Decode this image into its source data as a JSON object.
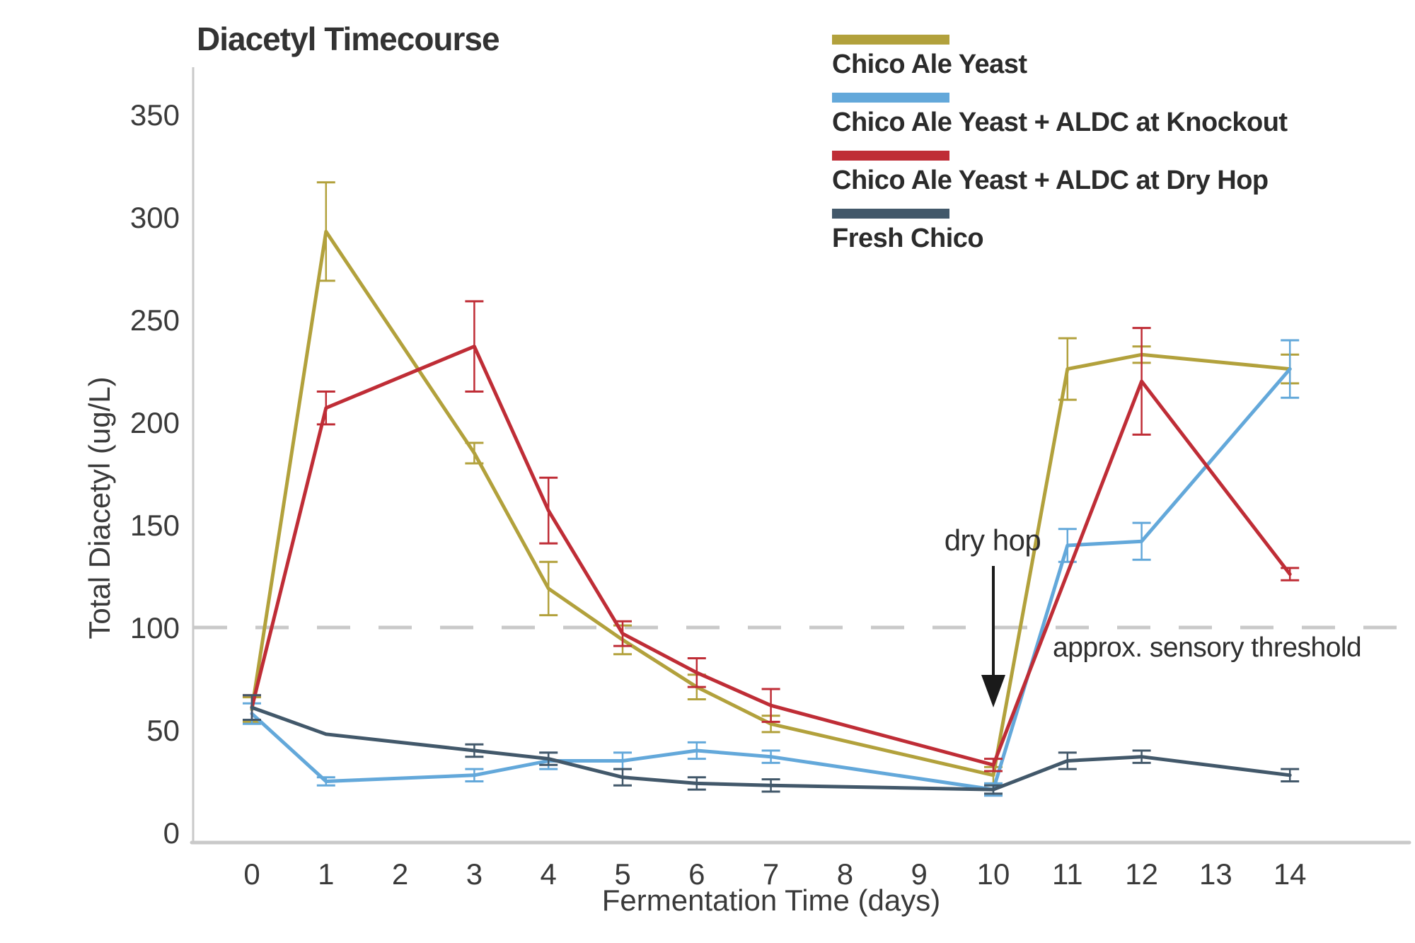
{
  "title": "Diacetyl Timecourse",
  "axes": {
    "x": {
      "label": "Fermentation Time (days)",
      "ticks": [
        0,
        1,
        2,
        3,
        4,
        5,
        6,
        7,
        8,
        9,
        10,
        11,
        12,
        13,
        14
      ]
    },
    "y": {
      "label": "Total Diacetyl (ug/L)",
      "ticks": [
        0,
        50,
        100,
        150,
        200,
        250,
        300,
        350
      ]
    }
  },
  "annotations": {
    "dry_hop": {
      "label": "dry hop",
      "day": 10
    },
    "threshold": {
      "label": "approx. sensory threshold",
      "value": 100
    }
  },
  "colors": {
    "axis": "#c9c9c9",
    "threshold_line": "#c9c9c9",
    "tick_text": "#3a3a3a",
    "annotation_text": "#2f2f2f",
    "arrow": "#1a1a1a",
    "background": "#ffffff"
  },
  "chart_data": {
    "type": "line",
    "title": "Diacetyl Timecourse",
    "xlabel": "Fermentation Time (days)",
    "ylabel": "Total Diacetyl (ug/L)",
    "xlim": [
      -0.8,
      15.6
    ],
    "ylim": [
      0,
      373
    ],
    "grid": false,
    "legend_position": "top-right",
    "threshold_line_y": 100,
    "dry_hop_arrow_day": 10,
    "series": [
      {
        "name": "Chico Ale Yeast",
        "color": "#b2a13c",
        "days": [
          0,
          1,
          3,
          4,
          5,
          6,
          7,
          10,
          11,
          12,
          14
        ],
        "values": [
          60,
          293,
          185,
          119,
          94,
          71,
          53,
          28,
          226,
          233,
          226
        ],
        "errors": [
          6,
          24,
          5,
          13,
          7,
          6,
          4,
          4,
          15,
          4,
          7
        ]
      },
      {
        "name": "Chico Ale Yeast + ALDC at Knockout",
        "color": "#63a8da",
        "days": [
          0,
          1,
          3,
          4,
          5,
          6,
          7,
          10,
          11,
          12,
          14
        ],
        "values": [
          58,
          25,
          28,
          35,
          35,
          40,
          37,
          21,
          140,
          142,
          226
        ],
        "errors": [
          5,
          2,
          3,
          4,
          4,
          4,
          3,
          3,
          8,
          9,
          14
        ]
      },
      {
        "name": "Chico Ale Yeast + ALDC at Dry Hop",
        "color": "#bf2d36",
        "days": [
          0,
          1,
          3,
          4,
          5,
          6,
          7,
          10,
          12,
          14
        ],
        "values": [
          61,
          207,
          237,
          157,
          97,
          78,
          62,
          33,
          220,
          126
        ],
        "errors": [
          6,
          8,
          22,
          16,
          6,
          7,
          8,
          3,
          26,
          3
        ]
      },
      {
        "name": "Fresh Chico",
        "color": "#42586a",
        "days": [
          0,
          1,
          3,
          4,
          5,
          6,
          7,
          10,
          11,
          12,
          14
        ],
        "values": [
          61,
          48,
          40,
          36,
          27,
          24,
          23,
          21,
          35,
          37,
          28
        ],
        "errors": [
          6,
          0,
          3,
          3,
          4,
          3,
          3,
          2,
          4,
          3,
          3
        ]
      }
    ]
  }
}
